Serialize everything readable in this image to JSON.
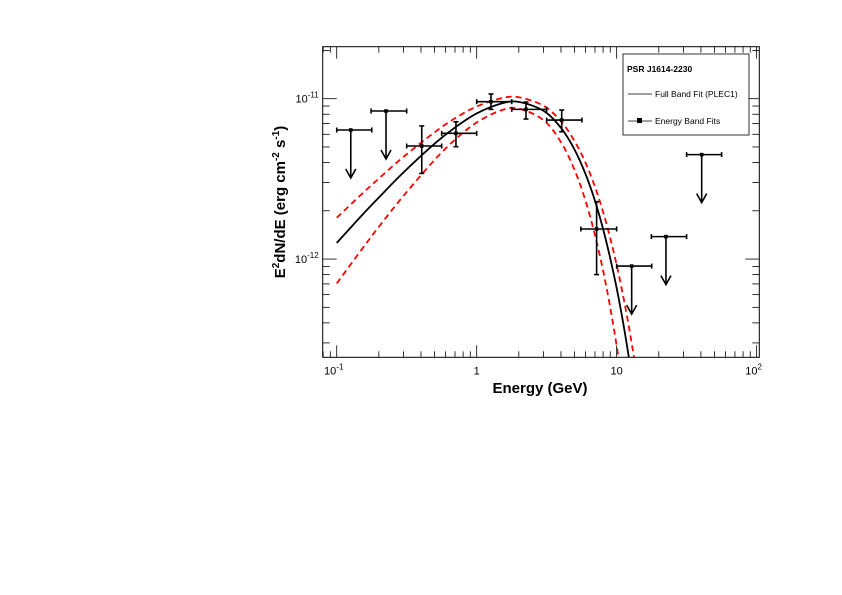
{
  "chart_data": {
    "type": "scatter",
    "xscale": "log",
    "yscale": "log",
    "xlim": [
      0.0794,
      104.5
    ],
    "ylim": [
      2.44e-13,
      2.11e-11
    ],
    "grid": false,
    "legend_placement": "top-right",
    "xlabel": "Energy (GeV)",
    "ylabel": {
      "base": "E",
      "sup1": "2",
      "mid": "dN/dE (erg cm",
      "sup2": "-2",
      "mid2": " s",
      "sup3": "-1",
      "end": ")"
    },
    "xticks": [
      {
        "value": 0.1,
        "base": "10",
        "exp": "-1"
      },
      {
        "value": 1,
        "base": "1",
        "exp": ""
      },
      {
        "value": 10,
        "base": "10",
        "exp": ""
      },
      {
        "value": 100,
        "base": "10",
        "exp": "2"
      }
    ],
    "yticks": [
      {
        "value": 1e-11,
        "base": "10",
        "exp": "-11"
      },
      {
        "value": 1e-12,
        "base": "10",
        "exp": "-12"
      }
    ],
    "legend": {
      "title": "PSR J1614-2230",
      "entries": [
        {
          "label": "Full Band Fit (PLEC1)",
          "kind": "line"
        },
        {
          "label": "Energy Band Fits",
          "kind": "marker"
        }
      ]
    },
    "colors": {
      "data": "#000000",
      "fit": "#000000",
      "band": "#ff0000"
    },
    "points": [
      {
        "x": 0.126,
        "xlo": 0.1,
        "xhi": 0.178,
        "y": 6.38e-12,
        "upper_limit": true
      },
      {
        "x": 0.225,
        "xlo": 0.176,
        "xhi": 0.316,
        "y": 8.38e-12,
        "upper_limit": true
      },
      {
        "x": 0.405,
        "xlo": 0.316,
        "xhi": 0.562,
        "y": 5.07e-12,
        "ylo": 3.42e-12,
        "yhi": 6.76e-12
      },
      {
        "x": 0.711,
        "xlo": 0.562,
        "xhi": 1.0,
        "y": 6.08e-12,
        "ylo": 5.02e-12,
        "yhi": 7.18e-12
      },
      {
        "x": 1.265,
        "xlo": 1.0,
        "xhi": 1.78,
        "y": 9.58e-12,
        "ylo": 8.58e-12,
        "yhi": 1.07e-11
      },
      {
        "x": 2.25,
        "xlo": 1.78,
        "xhi": 3.16,
        "y": 8.58e-12,
        "ylo": 7.47e-12,
        "yhi": 9.53e-12
      },
      {
        "x": 4.05,
        "xlo": 3.16,
        "xhi": 5.65,
        "y": 7.36e-12,
        "ylo": 6.22e-12,
        "yhi": 8.5e-12
      },
      {
        "x": 7.19,
        "xlo": 5.55,
        "xhi": 10.0,
        "y": 1.54e-12,
        "ylo": 8e-13,
        "yhi": 2.28e-12
      },
      {
        "x": 12.8,
        "xlo": 10.0,
        "xhi": 17.8,
        "y": 9.04e-13,
        "upper_limit": true
      },
      {
        "x": 22.5,
        "xlo": 17.7,
        "xhi": 31.6,
        "y": 1.38e-12,
        "upper_limit": true
      },
      {
        "x": 40.5,
        "xlo": 31.6,
        "xhi": 56.2,
        "y": 4.48e-12,
        "upper_limit": true
      }
    ],
    "fit_curve": [
      [
        0.1,
        1.26e-12
      ],
      [
        0.15,
        1.86e-12
      ],
      [
        0.2,
        2.42e-12
      ],
      [
        0.3,
        3.47e-12
      ],
      [
        0.5,
        5.24e-12
      ],
      [
        0.7,
        6.61e-12
      ],
      [
        1,
        8.09e-12
      ],
      [
        1.5,
        9.33e-12
      ],
      [
        2,
        9.55e-12
      ],
      [
        3,
        8.41e-12
      ],
      [
        4,
        6.58e-12
      ],
      [
        5,
        4.82e-12
      ],
      [
        6,
        3.38e-12
      ],
      [
        7,
        2.31e-12
      ],
      [
        8,
        1.54e-12
      ],
      [
        9,
        1.01e-12
      ],
      [
        10,
        6.59e-13
      ],
      [
        11,
        4.24e-13
      ],
      [
        12,
        2.7e-13
      ],
      [
        13,
        1.71e-13
      ]
    ],
    "band_upper": [
      [
        0.1,
        1.81e-12
      ],
      [
        0.15,
        2.53e-12
      ],
      [
        0.2,
        3.18e-12
      ],
      [
        0.3,
        4.34e-12
      ],
      [
        0.5,
        6.17e-12
      ],
      [
        0.7,
        7.55e-12
      ],
      [
        1,
        8.94e-12
      ],
      [
        1.5,
        1.007e-11
      ],
      [
        2,
        1.021e-11
      ],
      [
        3,
        9.04e-12
      ],
      [
        4,
        7.23e-12
      ],
      [
        5,
        5.45e-12
      ],
      [
        6,
        3.97e-12
      ],
      [
        7,
        2.82e-12
      ],
      [
        8,
        1.97e-12
      ],
      [
        9,
        1.35e-12
      ],
      [
        10,
        9.2e-13
      ],
      [
        11,
        6.19e-13
      ],
      [
        12,
        4.16e-13
      ],
      [
        13,
        2.76e-13
      ],
      [
        14,
        1.83e-13
      ]
    ],
    "band_lower": [
      [
        0.1,
        7.05e-13
      ],
      [
        0.15,
        1.14e-12
      ],
      [
        0.2,
        1.59e-12
      ],
      [
        0.3,
        2.48e-12
      ],
      [
        0.5,
        4.15e-12
      ],
      [
        0.7,
        5.55e-12
      ],
      [
        1,
        7.11e-12
      ],
      [
        1.5,
        8.47e-12
      ],
      [
        2,
        8.67e-12
      ],
      [
        3,
        7.35e-12
      ],
      [
        4,
        5.36e-12
      ],
      [
        5,
        3.6e-12
      ],
      [
        6,
        2.3e-12
      ],
      [
        7,
        1.41e-12
      ],
      [
        8,
        8.47e-13
      ],
      [
        9,
        4.98e-13
      ],
      [
        10,
        2.88e-13
      ],
      [
        11,
        1.64e-13
      ]
    ]
  }
}
